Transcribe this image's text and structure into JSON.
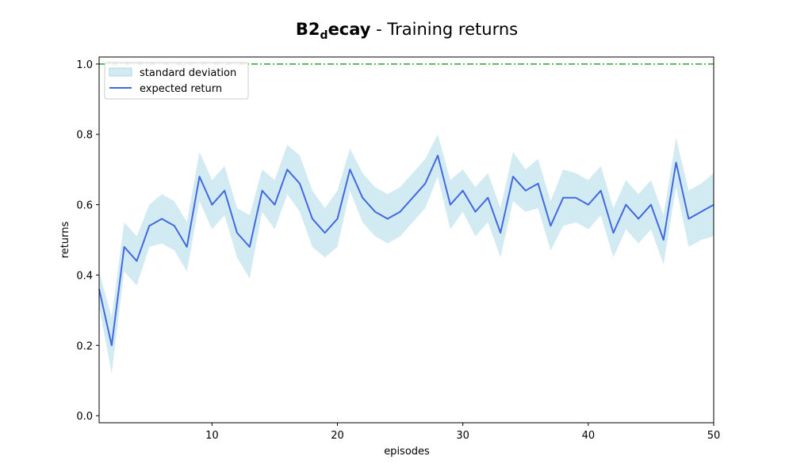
{
  "chart_data": {
    "type": "line",
    "title_main": "B2",
    "title_sub": "d",
    "title_rest": "ecay",
    "title_suffix": " - Training returns",
    "xlabel": "episodes",
    "ylabel": "returns",
    "xlim": [
      1,
      50
    ],
    "ylim": [
      -0.02,
      1.02
    ],
    "xticks": [
      10,
      20,
      30,
      40,
      50
    ],
    "yticks": [
      0.0,
      0.2,
      0.4,
      0.6,
      0.8,
      1.0
    ],
    "xtick_labels": [
      "10",
      "20",
      "30",
      "40",
      "50"
    ],
    "ytick_labels": [
      "0.0",
      "0.2",
      "0.4",
      "0.6",
      "0.8",
      "1.0"
    ],
    "reference_line": {
      "y": 1.0,
      "color": "#2ca02c",
      "style": "dash-dot"
    },
    "legend": {
      "position": "top-left",
      "band_label": "standard deviation",
      "line_label": "expected return"
    },
    "colors": {
      "line": "#4169e1",
      "band": "#add8e6"
    },
    "x": [
      1,
      2,
      3,
      4,
      5,
      6,
      7,
      8,
      9,
      10,
      11,
      12,
      13,
      14,
      15,
      16,
      17,
      18,
      19,
      20,
      21,
      22,
      23,
      24,
      25,
      26,
      27,
      28,
      29,
      30,
      31,
      32,
      33,
      34,
      35,
      36,
      37,
      38,
      39,
      40,
      41,
      42,
      43,
      44,
      45,
      46,
      47,
      48,
      49,
      50
    ],
    "series": [
      {
        "name": "expected return",
        "values": [
          0.36,
          0.2,
          0.48,
          0.44,
          0.54,
          0.56,
          0.54,
          0.48,
          0.68,
          0.6,
          0.64,
          0.52,
          0.48,
          0.64,
          0.6,
          0.7,
          0.66,
          0.56,
          0.52,
          0.56,
          0.7,
          0.62,
          0.58,
          0.56,
          0.58,
          0.62,
          0.66,
          0.74,
          0.6,
          0.64,
          0.58,
          0.62,
          0.52,
          0.68,
          0.64,
          0.66,
          0.54,
          0.62,
          0.62,
          0.6,
          0.64,
          0.52,
          0.6,
          0.56,
          0.6,
          0.5,
          0.72,
          0.56,
          0.58,
          0.6
        ],
        "std": [
          0.05,
          0.08,
          0.07,
          0.07,
          0.06,
          0.07,
          0.07,
          0.07,
          0.07,
          0.07,
          0.07,
          0.07,
          0.09,
          0.06,
          0.07,
          0.07,
          0.08,
          0.08,
          0.07,
          0.08,
          0.06,
          0.07,
          0.07,
          0.07,
          0.07,
          0.07,
          0.07,
          0.06,
          0.07,
          0.06,
          0.07,
          0.07,
          0.07,
          0.07,
          0.06,
          0.07,
          0.07,
          0.08,
          0.07,
          0.07,
          0.07,
          0.07,
          0.07,
          0.07,
          0.07,
          0.07,
          0.07,
          0.08,
          0.08,
          0.09
        ]
      }
    ]
  }
}
